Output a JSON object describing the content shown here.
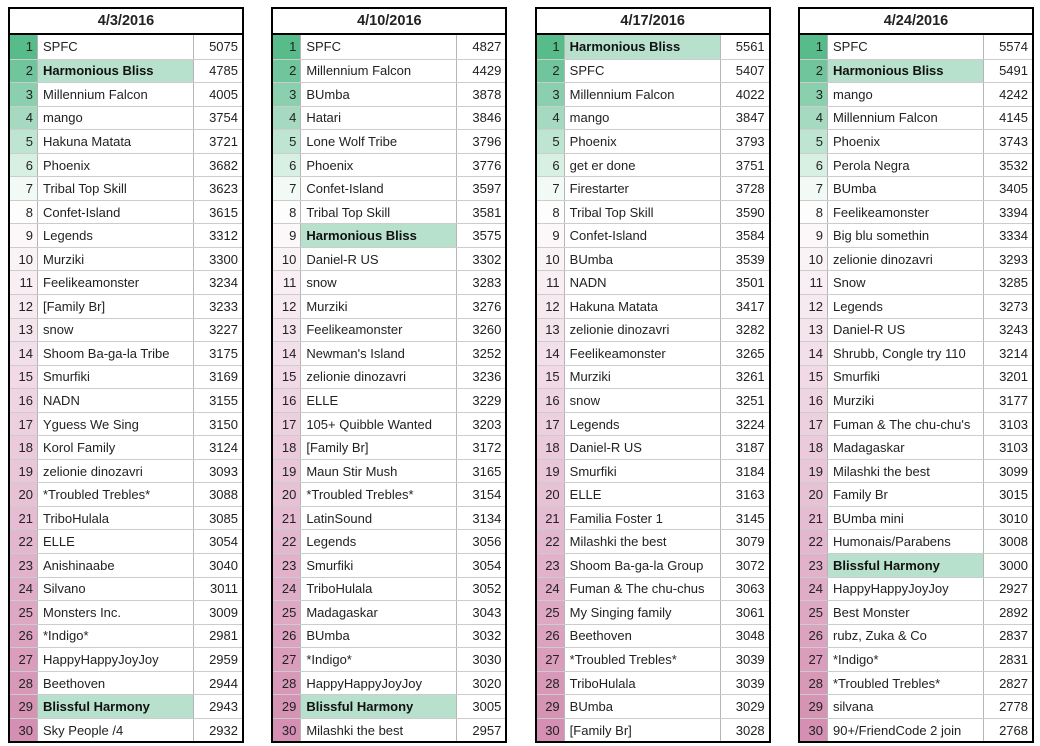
{
  "colors": {
    "highlight_green": "#b7e1cd",
    "rank_scale_top": "#57bb8a",
    "rank_scale_mid": "#ffffff",
    "rank_scale_bottom": "#d48fb2",
    "grid_line": "#cccccc",
    "outer_border": "#000000"
  },
  "rank_gradient_white_at_rank": 7.5,
  "tables": [
    {
      "date": "4/3/2016",
      "rows": [
        {
          "rank": 1,
          "name": "SPFC",
          "score": 5075,
          "highlight": false
        },
        {
          "rank": 2,
          "name": "Harmonious Bliss",
          "score": 4785,
          "highlight": true
        },
        {
          "rank": 3,
          "name": "Millennium Falcon",
          "score": 4005,
          "highlight": false
        },
        {
          "rank": 4,
          "name": "mango",
          "score": 3754,
          "highlight": false
        },
        {
          "rank": 5,
          "name": "Hakuna Matata",
          "score": 3721,
          "highlight": false
        },
        {
          "rank": 6,
          "name": "Phoenix",
          "score": 3682,
          "highlight": false
        },
        {
          "rank": 7,
          "name": "Tribal Top Skill",
          "score": 3623,
          "highlight": false
        },
        {
          "rank": 8,
          "name": "Confet-Island",
          "score": 3615,
          "highlight": false
        },
        {
          "rank": 9,
          "name": "Legends",
          "score": 3312,
          "highlight": false
        },
        {
          "rank": 10,
          "name": "Murziki",
          "score": 3300,
          "highlight": false
        },
        {
          "rank": 11,
          "name": "Feelikeamonster",
          "score": 3234,
          "highlight": false
        },
        {
          "rank": 12,
          "name": "[Family Br]",
          "score": 3233,
          "highlight": false
        },
        {
          "rank": 13,
          "name": "snow",
          "score": 3227,
          "highlight": false
        },
        {
          "rank": 14,
          "name": "Shoom Ba-ga-la Tribe",
          "score": 3175,
          "highlight": false
        },
        {
          "rank": 15,
          "name": "Smurfiki",
          "score": 3169,
          "highlight": false
        },
        {
          "rank": 16,
          "name": "NADN",
          "score": 3155,
          "highlight": false
        },
        {
          "rank": 17,
          "name": "Yguess We Sing",
          "score": 3150,
          "highlight": false
        },
        {
          "rank": 18,
          "name": "Korol Family",
          "score": 3124,
          "highlight": false
        },
        {
          "rank": 19,
          "name": "zelionie dinozavri",
          "score": 3093,
          "highlight": false
        },
        {
          "rank": 20,
          "name": "*Troubled Trebles*",
          "score": 3088,
          "highlight": false
        },
        {
          "rank": 21,
          "name": "TriboHulala",
          "score": 3085,
          "highlight": false
        },
        {
          "rank": 22,
          "name": "ELLE",
          "score": 3054,
          "highlight": false
        },
        {
          "rank": 23,
          "name": "Anishinaabe",
          "score": 3040,
          "highlight": false
        },
        {
          "rank": 24,
          "name": "Silvano",
          "score": 3011,
          "highlight": false
        },
        {
          "rank": 25,
          "name": "Monsters Inc.",
          "score": 3009,
          "highlight": false
        },
        {
          "rank": 26,
          "name": "*Indigo*",
          "score": 2981,
          "highlight": false
        },
        {
          "rank": 27,
          "name": "HappyHappyJoyJoy",
          "score": 2959,
          "highlight": false
        },
        {
          "rank": 28,
          "name": "Beethoven",
          "score": 2944,
          "highlight": false
        },
        {
          "rank": 29,
          "name": "Blissful Harmony",
          "score": 2943,
          "highlight": true
        },
        {
          "rank": 30,
          "name": "Sky People /4",
          "score": 2932,
          "highlight": false
        }
      ]
    },
    {
      "date": "4/10/2016",
      "rows": [
        {
          "rank": 1,
          "name": "SPFC",
          "score": 4827,
          "highlight": false
        },
        {
          "rank": 2,
          "name": "Millennium Falcon",
          "score": 4429,
          "highlight": false
        },
        {
          "rank": 3,
          "name": "BUmba",
          "score": 3878,
          "highlight": false
        },
        {
          "rank": 4,
          "name": "Hatari",
          "score": 3846,
          "highlight": false
        },
        {
          "rank": 5,
          "name": "Lone Wolf Tribe",
          "score": 3796,
          "highlight": false
        },
        {
          "rank": 6,
          "name": "Phoenix",
          "score": 3776,
          "highlight": false
        },
        {
          "rank": 7,
          "name": "Confet-Island",
          "score": 3597,
          "highlight": false
        },
        {
          "rank": 8,
          "name": "Tribal Top Skill",
          "score": 3581,
          "highlight": false
        },
        {
          "rank": 9,
          "name": "Harmonious Bliss",
          "score": 3575,
          "highlight": true
        },
        {
          "rank": 10,
          "name": "Daniel-R US",
          "score": 3302,
          "highlight": false
        },
        {
          "rank": 11,
          "name": "snow",
          "score": 3283,
          "highlight": false
        },
        {
          "rank": 12,
          "name": "Murziki",
          "score": 3276,
          "highlight": false
        },
        {
          "rank": 13,
          "name": "Feelikeamonster",
          "score": 3260,
          "highlight": false
        },
        {
          "rank": 14,
          "name": "Newman's Island",
          "score": 3252,
          "highlight": false
        },
        {
          "rank": 15,
          "name": "zelionie dinozavri",
          "score": 3236,
          "highlight": false
        },
        {
          "rank": 16,
          "name": "ELLE",
          "score": 3229,
          "highlight": false
        },
        {
          "rank": 17,
          "name": "105+ Quibble Wanted",
          "score": 3203,
          "highlight": false
        },
        {
          "rank": 18,
          "name": "[Family Br]",
          "score": 3172,
          "highlight": false
        },
        {
          "rank": 19,
          "name": "Maun Stir Mush",
          "score": 3165,
          "highlight": false
        },
        {
          "rank": 20,
          "name": "*Troubled Trebles*",
          "score": 3154,
          "highlight": false
        },
        {
          "rank": 21,
          "name": "LatinSound",
          "score": 3134,
          "highlight": false
        },
        {
          "rank": 22,
          "name": "Legends",
          "score": 3056,
          "highlight": false
        },
        {
          "rank": 23,
          "name": "Smurfiki",
          "score": 3054,
          "highlight": false
        },
        {
          "rank": 24,
          "name": "TriboHulala",
          "score": 3052,
          "highlight": false
        },
        {
          "rank": 25,
          "name": "Madagaskar",
          "score": 3043,
          "highlight": false
        },
        {
          "rank": 26,
          "name": "BUmba",
          "score": 3032,
          "highlight": false
        },
        {
          "rank": 27,
          "name": "*Indigo*",
          "score": 3030,
          "highlight": false
        },
        {
          "rank": 28,
          "name": "HappyHappyJoyJoy",
          "score": 3020,
          "highlight": false
        },
        {
          "rank": 29,
          "name": "Blissful Harmony",
          "score": 3005,
          "highlight": true
        },
        {
          "rank": 30,
          "name": "Milashki the best",
          "score": 2957,
          "highlight": false
        }
      ]
    },
    {
      "date": "4/17/2016",
      "rows": [
        {
          "rank": 1,
          "name": "Harmonious Bliss",
          "score": 5561,
          "highlight": true
        },
        {
          "rank": 2,
          "name": "SPFC",
          "score": 5407,
          "highlight": false
        },
        {
          "rank": 3,
          "name": "Millennium Falcon",
          "score": 4022,
          "highlight": false
        },
        {
          "rank": 4,
          "name": "mango",
          "score": 3847,
          "highlight": false
        },
        {
          "rank": 5,
          "name": "Phoenix",
          "score": 3793,
          "highlight": false
        },
        {
          "rank": 6,
          "name": "get er done",
          "score": 3751,
          "highlight": false
        },
        {
          "rank": 7,
          "name": "Firestarter",
          "score": 3728,
          "highlight": false
        },
        {
          "rank": 8,
          "name": "Tribal Top Skill",
          "score": 3590,
          "highlight": false
        },
        {
          "rank": 9,
          "name": "Confet-Island",
          "score": 3584,
          "highlight": false
        },
        {
          "rank": 10,
          "name": "BUmba",
          "score": 3539,
          "highlight": false
        },
        {
          "rank": 11,
          "name": "NADN",
          "score": 3501,
          "highlight": false
        },
        {
          "rank": 12,
          "name": "Hakuna Matata",
          "score": 3417,
          "highlight": false
        },
        {
          "rank": 13,
          "name": "zelionie dinozavri",
          "score": 3282,
          "highlight": false
        },
        {
          "rank": 14,
          "name": "Feelikeamonster",
          "score": 3265,
          "highlight": false
        },
        {
          "rank": 15,
          "name": "Murziki",
          "score": 3261,
          "highlight": false
        },
        {
          "rank": 16,
          "name": "snow",
          "score": 3251,
          "highlight": false
        },
        {
          "rank": 17,
          "name": "Legends",
          "score": 3224,
          "highlight": false
        },
        {
          "rank": 18,
          "name": "Daniel-R US",
          "score": 3187,
          "highlight": false
        },
        {
          "rank": 19,
          "name": "Smurfiki",
          "score": 3184,
          "highlight": false
        },
        {
          "rank": 20,
          "name": "ELLE",
          "score": 3163,
          "highlight": false
        },
        {
          "rank": 21,
          "name": "Familia Foster 1",
          "score": 3145,
          "highlight": false
        },
        {
          "rank": 22,
          "name": "Milashki the best",
          "score": 3079,
          "highlight": false
        },
        {
          "rank": 23,
          "name": "Shoom Ba-ga-la Group",
          "score": 3072,
          "highlight": false
        },
        {
          "rank": 24,
          "name": "Fuman & The chu-chus",
          "score": 3063,
          "highlight": false
        },
        {
          "rank": 25,
          "name": "My Singing family",
          "score": 3061,
          "highlight": false
        },
        {
          "rank": 26,
          "name": "Beethoven",
          "score": 3048,
          "highlight": false
        },
        {
          "rank": 27,
          "name": "*Troubled Trebles*",
          "score": 3039,
          "highlight": false
        },
        {
          "rank": 28,
          "name": "TriboHulala",
          "score": 3039,
          "highlight": false
        },
        {
          "rank": 29,
          "name": "BUmba",
          "score": 3029,
          "highlight": false
        },
        {
          "rank": 30,
          "name": "[Family Br]",
          "score": 3028,
          "highlight": false
        }
      ]
    },
    {
      "date": "4/24/2016",
      "rows": [
        {
          "rank": 1,
          "name": "SPFC",
          "score": 5574,
          "highlight": false
        },
        {
          "rank": 2,
          "name": "Harmonious Bliss",
          "score": 5491,
          "highlight": true
        },
        {
          "rank": 3,
          "name": "mango",
          "score": 4242,
          "highlight": false
        },
        {
          "rank": 4,
          "name": "Millennium Falcon",
          "score": 4145,
          "highlight": false
        },
        {
          "rank": 5,
          "name": "Phoenix",
          "score": 3743,
          "highlight": false
        },
        {
          "rank": 6,
          "name": "Perola Negra",
          "score": 3532,
          "highlight": false
        },
        {
          "rank": 7,
          "name": "BUmba",
          "score": 3405,
          "highlight": false
        },
        {
          "rank": 8,
          "name": "Feelikeamonster",
          "score": 3394,
          "highlight": false
        },
        {
          "rank": 9,
          "name": "Big blu somethin",
          "score": 3334,
          "highlight": false
        },
        {
          "rank": 10,
          "name": "zelionie dinozavri",
          "score": 3293,
          "highlight": false
        },
        {
          "rank": 11,
          "name": "Snow",
          "score": 3285,
          "highlight": false
        },
        {
          "rank": 12,
          "name": "Legends",
          "score": 3273,
          "highlight": false
        },
        {
          "rank": 13,
          "name": "Daniel-R US",
          "score": 3243,
          "highlight": false
        },
        {
          "rank": 14,
          "name": "Shrubb, Congle try 110",
          "score": 3214,
          "highlight": false
        },
        {
          "rank": 15,
          "name": "Smurfiki",
          "score": 3201,
          "highlight": false
        },
        {
          "rank": 16,
          "name": "Murziki",
          "score": 3177,
          "highlight": false
        },
        {
          "rank": 17,
          "name": "Fuman & The chu-chu's",
          "score": 3103,
          "highlight": false
        },
        {
          "rank": 18,
          "name": "Madagaskar",
          "score": 3103,
          "highlight": false
        },
        {
          "rank": 19,
          "name": "Milashki the best",
          "score": 3099,
          "highlight": false
        },
        {
          "rank": 20,
          "name": "Family Br",
          "score": 3015,
          "highlight": false
        },
        {
          "rank": 21,
          "name": "BUmba mini",
          "score": 3010,
          "highlight": false
        },
        {
          "rank": 22,
          "name": "Humonais/Parabens",
          "score": 3008,
          "highlight": false
        },
        {
          "rank": 23,
          "name": "Blissful Harmony",
          "score": 3000,
          "highlight": true
        },
        {
          "rank": 24,
          "name": "HappyHappyJoyJoy",
          "score": 2927,
          "highlight": false
        },
        {
          "rank": 25,
          "name": "Best Monster",
          "score": 2892,
          "highlight": false
        },
        {
          "rank": 26,
          "name": "rubz, Zuka & Co",
          "score": 2837,
          "highlight": false
        },
        {
          "rank": 27,
          "name": "*Indigo*",
          "score": 2831,
          "highlight": false
        },
        {
          "rank": 28,
          "name": "*Troubled Trebles*",
          "score": 2827,
          "highlight": false
        },
        {
          "rank": 29,
          "name": "silvana",
          "score": 2778,
          "highlight": false
        },
        {
          "rank": 30,
          "name": "90+/FriendCode 2 join",
          "score": 2768,
          "highlight": false
        }
      ]
    }
  ]
}
